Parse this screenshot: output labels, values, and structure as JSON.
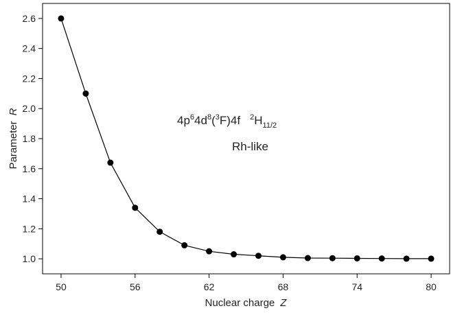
{
  "chart_data": {
    "type": "line",
    "title": "",
    "xlabel": "Nuclear charge",
    "xlabel_symbol": "Z",
    "ylabel": "Parameter",
    "ylabel_symbol": "R",
    "xlim": [
      48.5,
      81.5
    ],
    "ylim": [
      0.9,
      2.7
    ],
    "xticks": [
      50,
      56,
      62,
      68,
      74,
      80
    ],
    "yticks": [
      1.0,
      1.2,
      1.4,
      1.6,
      1.8,
      2.0,
      2.2,
      2.4,
      2.6
    ],
    "ytick_labels": [
      "1.0",
      "1.2",
      "1.4",
      "1.6",
      "1.8",
      "2.0",
      "2.2",
      "2.4",
      "2.6"
    ],
    "grid": false,
    "legend": "none",
    "series": [
      {
        "x": [
          50,
          52,
          54,
          56,
          58,
          60,
          62,
          64,
          66,
          68,
          70,
          72,
          74,
          76,
          78,
          80
        ],
        "y": [
          2.6,
          2.1,
          1.64,
          1.34,
          1.18,
          1.09,
          1.05,
          1.03,
          1.02,
          1.01,
          1.005,
          1.004,
          1.003,
          1.002,
          1.001,
          1.001
        ],
        "color": "#000000",
        "marker": "circle"
      }
    ],
    "annotations": {
      "config_base": "4p",
      "config_sup1": "6",
      "config_mid1": "4d",
      "config_sup2": "8",
      "config_mid2": "(",
      "config_sup3": "3",
      "config_mid3": "F)4f",
      "term_sup": "2",
      "term_letter": "H",
      "term_sub": "11/2",
      "sequence": "Rh-like"
    }
  }
}
